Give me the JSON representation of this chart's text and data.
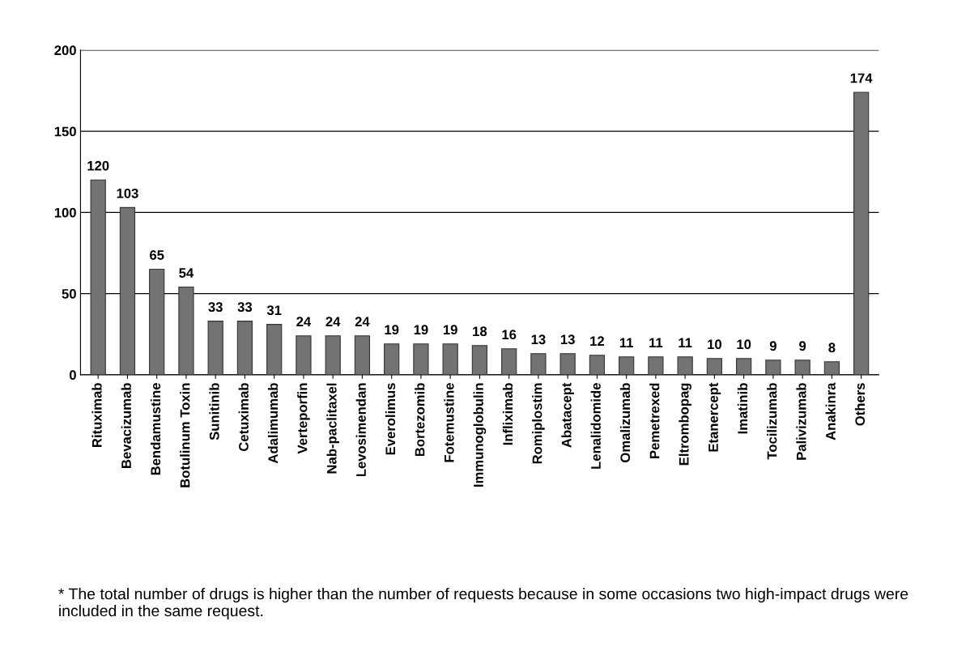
{
  "chart_data": {
    "type": "bar",
    "categories": [
      "Rituximab",
      "Bevacizumab",
      "Bendamustine",
      "Botulinum Toxin",
      "Sunitinib",
      "Cetuximab",
      "Adalimumab",
      "Verteporfin",
      "Nab-paclitaxel",
      "Levosimendan",
      "Everolimus",
      "Bortezomib",
      "Fotemustine",
      "Immunoglobulin",
      "Infliximab",
      "Romiplostim",
      "Abatacept",
      "Lenalidomide",
      "Omalizumab",
      "Pemetrexed",
      "Eltrombopag",
      "Etanercept",
      "Imatinib",
      "Tocilizumab",
      "Palivizumab",
      "Anakinra",
      "Others"
    ],
    "values": [
      120,
      103,
      65,
      54,
      33,
      33,
      31,
      24,
      24,
      24,
      19,
      19,
      19,
      18,
      16,
      13,
      13,
      12,
      11,
      11,
      11,
      10,
      10,
      9,
      9,
      8,
      174
    ],
    "color": "#737373",
    "ylim": [
      0,
      200
    ],
    "yticks": [
      0,
      50,
      100,
      150,
      200
    ],
    "grid": "y",
    "data_labels": true,
    "annotations": [
      "* The total number of drugs is higher than the number of requests because in some occasions two high-impact drugs were included in the same request."
    ]
  }
}
